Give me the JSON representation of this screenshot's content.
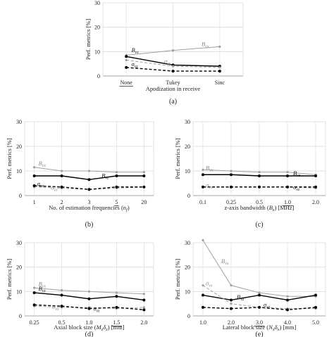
{
  "chart_data": [
    {
      "type": "line",
      "panel_label": "(a)",
      "xlabel": "Apodization in receive",
      "ylabel": "Perf. metrics [%]",
      "categories": [
        "None",
        "Tukey",
        "Sinc"
      ],
      "underlined_category": "None",
      "ylim": [
        0,
        30
      ],
      "yticks": [
        "0",
        "10",
        "20",
        "30"
      ],
      "grid": "horizontal and vertical",
      "series": [
        {
          "name": "B_vx",
          "label_main": "B",
          "label_sub": "vx",
          "color": "#a0a0a0",
          "style": "solid",
          "values": [
            8.5,
            10.5,
            12.0
          ]
        },
        {
          "name": "B_vz",
          "label_main": "B",
          "label_sub": "vz",
          "color": "#000000",
          "style": "solid",
          "values": [
            8.0,
            4.5,
            4.0
          ]
        },
        {
          "name": "σ_vx",
          "label_main": "σ",
          "label_sub": "vx",
          "color": "#a0a0a0",
          "style": "dashed",
          "values": [
            6.5,
            4.0,
            3.5
          ]
        },
        {
          "name": "σ_vz",
          "label_main": "σ",
          "label_sub": "vz",
          "color": "#000000",
          "style": "dashed",
          "values": [
            3.5,
            2.0,
            2.0
          ]
        }
      ]
    },
    {
      "type": "line",
      "panel_label": "(b)",
      "xlabel": "No. of estimation frequencies (n_f)",
      "xlabel_text": "No. of estimation frequencies (",
      "xlabel_var": "n",
      "xlabel_sub": "f",
      "xlabel_end": ")",
      "ylabel": "Perf. metrics [%]",
      "categories": [
        "1",
        "2",
        "3",
        "5",
        "20"
      ],
      "underlined_category": "5",
      "ylim": [
        0,
        30
      ],
      "yticks": [
        "0",
        "10",
        "20",
        "30"
      ],
      "grid": "horizontal and vertical",
      "series": [
        {
          "name": "B_vx",
          "label_main": "B",
          "label_sub": "vx",
          "color": "#a0a0a0",
          "style": "solid",
          "values": [
            11.5,
            10.0,
            10.0,
            9.5,
            9.5
          ]
        },
        {
          "name": "B_vz",
          "label_main": "B",
          "label_sub": "vz",
          "color": "#000000",
          "style": "solid",
          "values": [
            8.0,
            8.0,
            6.5,
            8.0,
            8.0
          ]
        },
        {
          "name": "σ_vx",
          "label_main": "σ",
          "label_sub": "vx",
          "color": "#a0a0a0",
          "style": "dashed",
          "values": [
            3.5,
            3.0,
            2.5,
            3.0,
            3.5
          ]
        },
        {
          "name": "σ_vz",
          "label_main": "σ",
          "label_sub": "vz",
          "color": "#000000",
          "style": "dashed",
          "values": [
            4.0,
            3.5,
            2.5,
            3.5,
            3.5
          ]
        }
      ]
    },
    {
      "type": "line",
      "panel_label": "(c)",
      "xlabel": "z-axis bandwidth (B_z) [MHz]",
      "xlabel_text": "z-axis bandwidth (",
      "xlabel_var": "B",
      "xlabel_sub": "z",
      "xlabel_end": ") [MHz]",
      "ylabel": "Perf. metrics [%]",
      "categories": [
        "0.1",
        "0.25",
        "0.5",
        "1.0",
        "2.0"
      ],
      "underlined_category": "1.0",
      "ylim": [
        0,
        30
      ],
      "yticks": [
        "0",
        "10",
        "20",
        "30"
      ],
      "grid": "horizontal and vertical",
      "series": [
        {
          "name": "B_vx",
          "label_main": "B",
          "label_sub": "vx",
          "color": "#a0a0a0",
          "style": "solid",
          "values": [
            10.5,
            10.0,
            9.5,
            9.5,
            8.5
          ]
        },
        {
          "name": "B_vz",
          "label_main": "B",
          "label_sub": "vz",
          "color": "#000000",
          "style": "solid",
          "values": [
            8.5,
            8.5,
            8.0,
            8.0,
            8.0
          ]
        },
        {
          "name": "σ_vx",
          "label_main": "σ",
          "label_sub": "vx",
          "color": "#a0a0a0",
          "style": "dashed",
          "values": [
            3.5,
            3.5,
            3.5,
            3.5,
            3.0
          ]
        },
        {
          "name": "σ_vz",
          "label_main": "σ",
          "label_sub": "vz",
          "color": "#000000",
          "style": "dashed",
          "values": [
            3.5,
            3.5,
            3.5,
            3.5,
            3.5
          ]
        }
      ]
    },
    {
      "type": "line",
      "panel_label": "(d)",
      "xlabel": "Axial block size (M_z δ_z) [mm]",
      "xlabel_text": "Axial block size (",
      "xlabel_var": "M",
      "xlabel_sub": "z",
      "xlabel_var2": "δ",
      "xlabel_sub2": "z",
      "xlabel_end": ") [mm]",
      "ylabel": "Perf. metrics [%]",
      "categories": [
        "0.25",
        "0.5",
        "1.0",
        "1.5",
        "2.0"
      ],
      "underlined_category": "1.5",
      "ylim": [
        0,
        30
      ],
      "yticks": [
        "0",
        "10",
        "20",
        "30"
      ],
      "grid": "horizontal and vertical",
      "series": [
        {
          "name": "B_vx",
          "label_main": "B",
          "label_sub": "vx",
          "color": "#a0a0a0",
          "style": "solid",
          "values": [
            11.5,
            10.5,
            10.0,
            9.5,
            9.0
          ]
        },
        {
          "name": "B_vz",
          "label_main": "B",
          "label_sub": "vz",
          "color": "#000000",
          "style": "solid",
          "values": [
            9.5,
            8.5,
            7.0,
            8.0,
            6.5
          ]
        },
        {
          "name": "σ_vx",
          "label_main": "σ",
          "label_sub": "vx",
          "color": "#a0a0a0",
          "style": "dashed",
          "values": [
            4.0,
            3.5,
            3.5,
            3.0,
            3.5
          ]
        },
        {
          "name": "σ_vz",
          "label_main": "σ",
          "label_sub": "vz",
          "color": "#000000",
          "style": "dashed",
          "values": [
            4.5,
            4.0,
            3.0,
            3.5,
            2.5
          ]
        }
      ]
    },
    {
      "type": "line",
      "panel_label": "(e)",
      "xlabel": "Lateral block size (N_x δ_x) [mm]",
      "xlabel_text": "Lateral block size (",
      "xlabel_var": "N",
      "xlabel_sub": "x",
      "xlabel_var2": "δ",
      "xlabel_sub2": "x",
      "xlabel_end": ") [mm]",
      "ylabel": "Perf. metrics [%]",
      "categories": [
        "1.0",
        "2.0",
        "3.0",
        "4.0",
        "5.0"
      ],
      "underlined_category": "3.0",
      "ylim": [
        0,
        30
      ],
      "yticks": [
        "0",
        "10",
        "20",
        "30"
      ],
      "grid": "horizontal and vertical",
      "series": [
        {
          "name": "B_vx",
          "label_main": "B",
          "label_sub": "vx",
          "color": "#a0a0a0",
          "style": "solid",
          "values": [
            31.0,
            12.5,
            9.5,
            8.0,
            8.0
          ]
        },
        {
          "name": "B_vz",
          "label_main": "B",
          "label_sub": "vz",
          "color": "#000000",
          "style": "solid",
          "values": [
            8.5,
            6.5,
            8.5,
            6.5,
            8.5
          ]
        },
        {
          "name": "σ_vx",
          "label_main": "σ",
          "label_sub": "vx",
          "color": "#a0a0a0",
          "style": "dashed",
          "values": [
            12.5,
            5.0,
            3.5,
            3.0,
            3.0
          ]
        },
        {
          "name": "σ_vz",
          "label_main": "σ",
          "label_sub": "vz",
          "color": "#000000",
          "style": "dashed",
          "values": [
            3.5,
            3.0,
            3.5,
            2.5,
            3.5
          ]
        }
      ]
    }
  ]
}
